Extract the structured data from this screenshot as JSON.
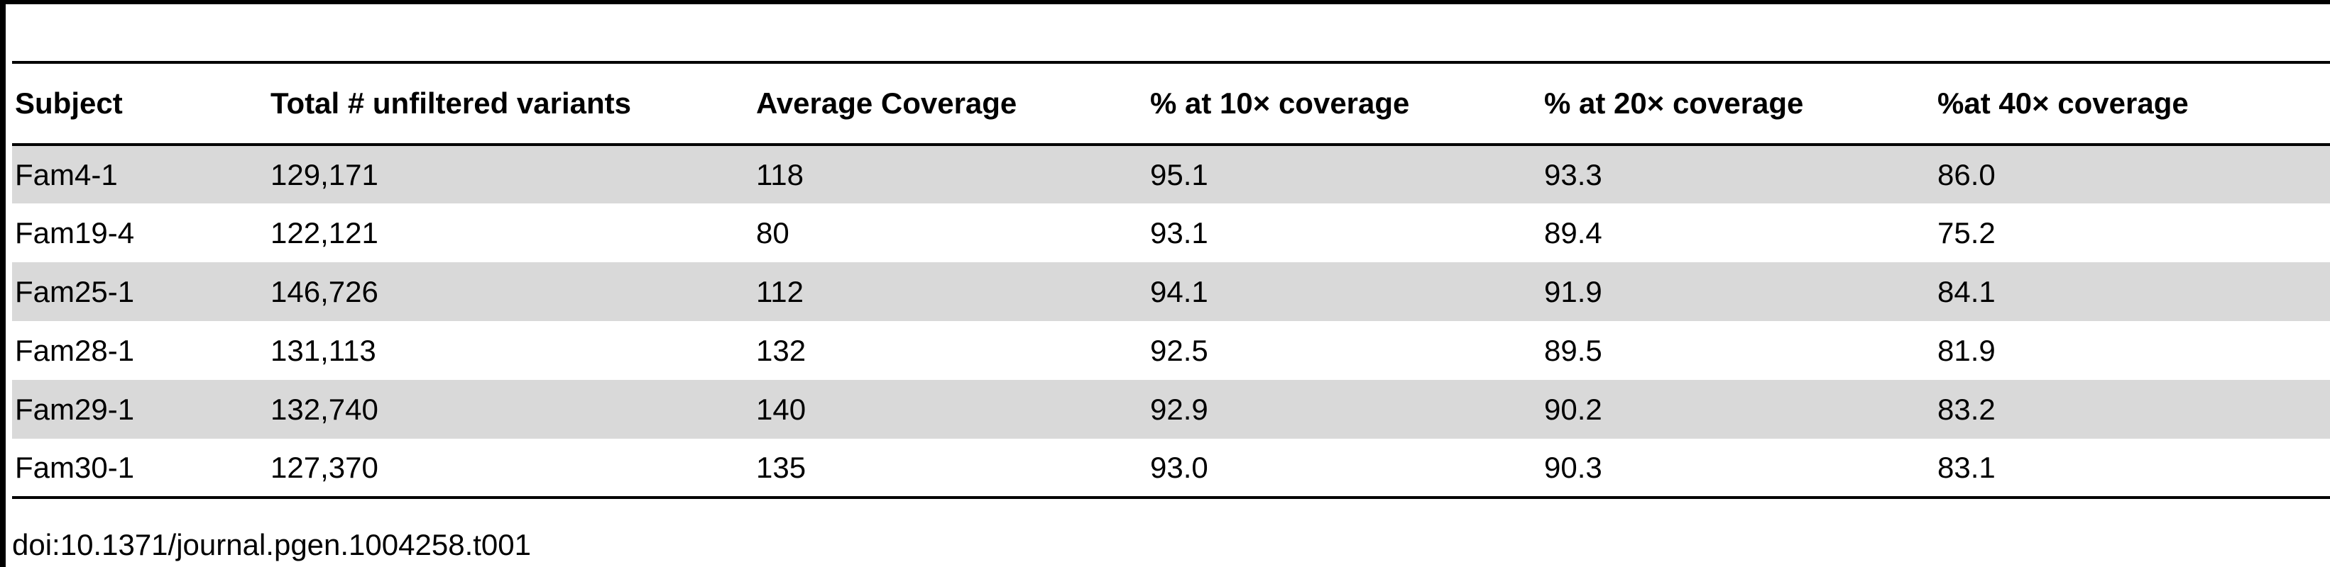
{
  "table": {
    "headers": [
      "Subject",
      "Total # unfiltered variants",
      "Average Coverage",
      "% at 10× coverage",
      "% at 20× coverage",
      "%at 40× coverage"
    ],
    "rows": [
      [
        "Fam4-1",
        "129,171",
        "118",
        "95.1",
        "93.3",
        "86.0"
      ],
      [
        "Fam19-4",
        "122,121",
        "80",
        "93.1",
        "89.4",
        "75.2"
      ],
      [
        "Fam25-1",
        "146,726",
        "112",
        "94.1",
        "91.9",
        "84.1"
      ],
      [
        "Fam28-1",
        "131,113",
        "132",
        "92.5",
        "89.5",
        "81.9"
      ],
      [
        "Fam29-1",
        "132,740",
        "140",
        "92.9",
        "90.2",
        "83.2"
      ],
      [
        "Fam30-1",
        "127,370",
        "135",
        "93.0",
        "90.3",
        "83.1"
      ]
    ],
    "shaded_row_color": "#d9d9d9"
  },
  "footer": {
    "doi": "doi:10.1371/journal.pgen.1004258.t001"
  }
}
